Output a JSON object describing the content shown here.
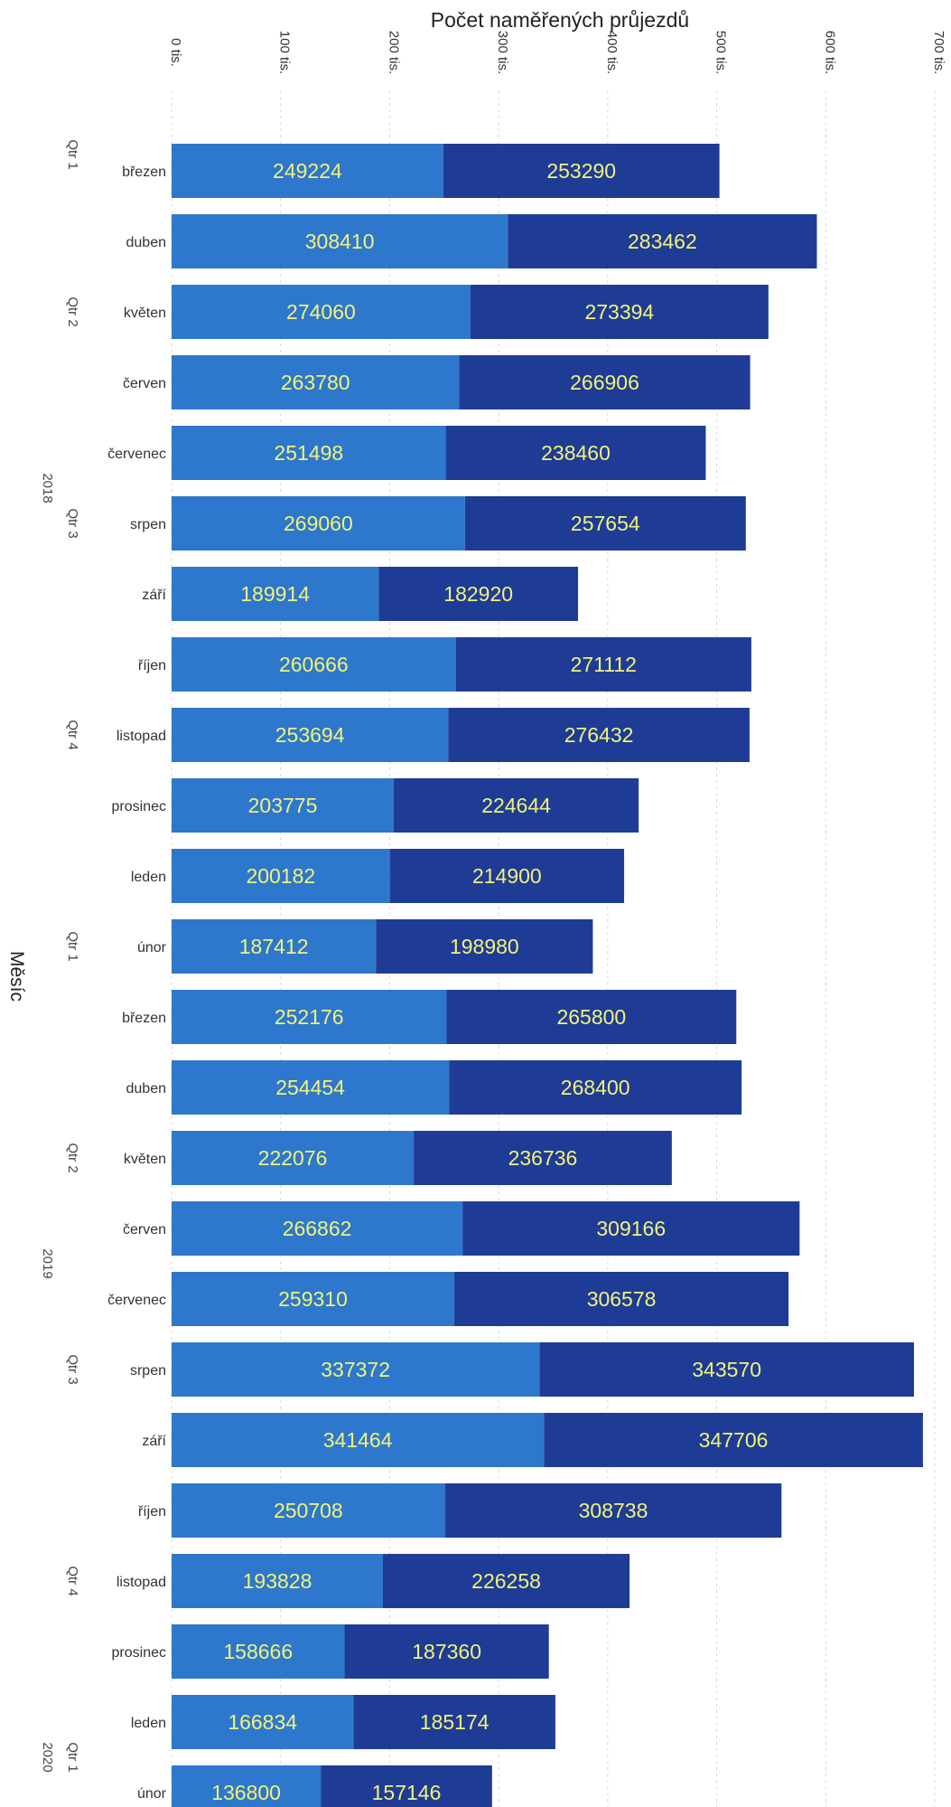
{
  "chart_data": {
    "type": "bar",
    "orientation": "horizontal",
    "stacked": true,
    "xlabel": "Počet naměřených průjezdů",
    "ylabel": "Měsíc",
    "xlim": [
      0,
      700000
    ],
    "x_ticks": [
      {
        "value": 0,
        "label": "0 tis."
      },
      {
        "value": 100000,
        "label": "100 tis."
      },
      {
        "value": 200000,
        "label": "200 tis."
      },
      {
        "value": 300000,
        "label": "300 tis."
      },
      {
        "value": 400000,
        "label": "400 tis."
      },
      {
        "value": 500000,
        "label": "500 tis."
      },
      {
        "value": 600000,
        "label": "600 tis."
      },
      {
        "value": 700000,
        "label": "700 tis."
      }
    ],
    "grid": true,
    "colors": [
      "#2d78cc",
      "#1e3c96"
    ],
    "label_colors": [
      "#f2f27a",
      "#f2f27a"
    ],
    "categories": [
      "březen",
      "duben",
      "květen",
      "červen",
      "červenec",
      "srpen",
      "září",
      "říjen",
      "listopad",
      "prosinec",
      "leden",
      "únor",
      "březen",
      "duben",
      "květen",
      "červen",
      "červenec",
      "srpen",
      "září",
      "říjen",
      "listopad",
      "prosinec",
      "leden",
      "únor"
    ],
    "series": [
      {
        "values": [
          249224,
          308410,
          274060,
          263780,
          251498,
          269060,
          189914,
          260666,
          253694,
          203775,
          200182,
          187412,
          252176,
          254454,
          222076,
          266862,
          259310,
          337372,
          341464,
          250708,
          193828,
          158666,
          166834,
          136800
        ]
      },
      {
        "values": [
          253290,
          283462,
          273394,
          266906,
          238460,
          257654,
          182920,
          271112,
          276432,
          224644,
          214900,
          198980,
          265800,
          268400,
          236736,
          309166,
          306578,
          343570,
          347706,
          308738,
          226258,
          187360,
          185174,
          157146
        ]
      }
    ],
    "hierarchy": {
      "years": [
        {
          "label": "2018",
          "start": 0,
          "end": 9
        },
        {
          "label": "2019",
          "start": 10,
          "end": 21
        },
        {
          "label": "2020",
          "start": 22,
          "end": 23
        }
      ],
      "quarters": [
        {
          "label": "Qtr 1",
          "start": 0,
          "end": 0
        },
        {
          "label": "Qtr 2",
          "start": 1,
          "end": 3
        },
        {
          "label": "Qtr 3",
          "start": 4,
          "end": 6
        },
        {
          "label": "Qtr 4",
          "start": 7,
          "end": 9
        },
        {
          "label": "Qtr 1",
          "start": 10,
          "end": 12
        },
        {
          "label": "Qtr 2",
          "start": 13,
          "end": 15
        },
        {
          "label": "Qtr 3",
          "start": 16,
          "end": 18
        },
        {
          "label": "Qtr 4",
          "start": 19,
          "end": 21
        },
        {
          "label": "Qtr 1",
          "start": 22,
          "end": 23
        }
      ]
    }
  }
}
